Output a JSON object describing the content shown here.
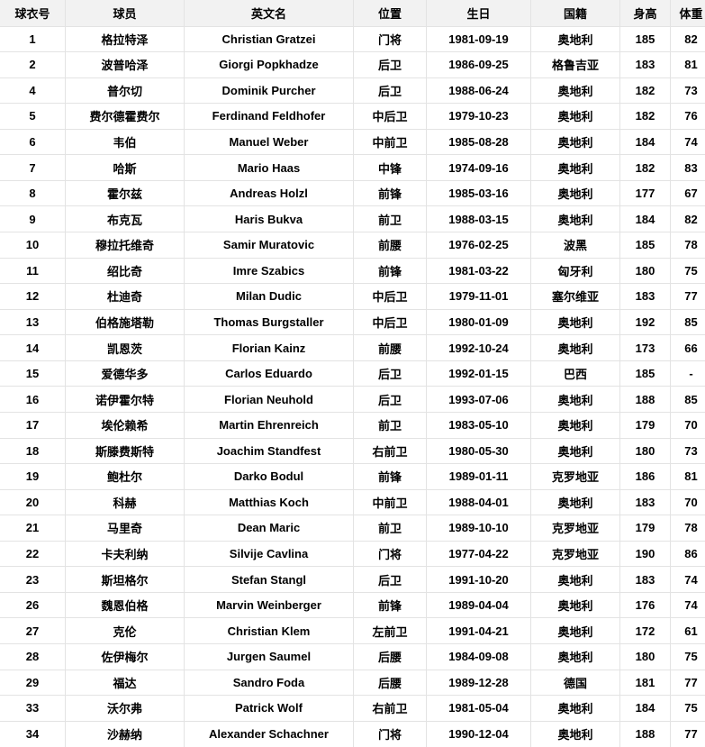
{
  "table": {
    "colors": {
      "header_bg": "#f2f2f2",
      "border": "#e3e3e3",
      "text": "#000000",
      "row_bg": "#ffffff"
    },
    "columns": [
      {
        "key": "jersey-number",
        "label": "球衣号"
      },
      {
        "key": "player-name",
        "label": "球员"
      },
      {
        "key": "english-name",
        "label": "英文名"
      },
      {
        "key": "position",
        "label": "位置"
      },
      {
        "key": "birthday",
        "label": "生日"
      },
      {
        "key": "nationality",
        "label": "国籍"
      },
      {
        "key": "height",
        "label": "身高"
      },
      {
        "key": "weight",
        "label": "体重"
      }
    ],
    "rows": [
      [
        "1",
        "格拉特泽",
        "Christian Gratzei",
        "门将",
        "1981-09-19",
        "奥地利",
        "185",
        "82"
      ],
      [
        "2",
        "波普哈泽",
        "Giorgi Popkhadze",
        "后卫",
        "1986-09-25",
        "格鲁吉亚",
        "183",
        "81"
      ],
      [
        "4",
        "普尔切",
        "Dominik Purcher",
        "后卫",
        "1988-06-24",
        "奥地利",
        "182",
        "73"
      ],
      [
        "5",
        "费尔德霍费尔",
        "Ferdinand Feldhofer",
        "中后卫",
        "1979-10-23",
        "奥地利",
        "182",
        "76"
      ],
      [
        "6",
        "韦伯",
        "Manuel Weber",
        "中前卫",
        "1985-08-28",
        "奥地利",
        "184",
        "74"
      ],
      [
        "7",
        "哈斯",
        "Mario Haas",
        "中锋",
        "1974-09-16",
        "奥地利",
        "182",
        "83"
      ],
      [
        "8",
        "霍尔兹",
        "Andreas Holzl",
        "前锋",
        "1985-03-16",
        "奥地利",
        "177",
        "67"
      ],
      [
        "9",
        "布克瓦",
        "Haris Bukva",
        "前卫",
        "1988-03-15",
        "奥地利",
        "184",
        "82"
      ],
      [
        "10",
        "穆拉托维奇",
        "Samir Muratovic",
        "前腰",
        "1976-02-25",
        "波黑",
        "185",
        "78"
      ],
      [
        "11",
        "绍比奇",
        "Imre Szabics",
        "前锋",
        "1981-03-22",
        "匈牙利",
        "180",
        "75"
      ],
      [
        "12",
        "杜迪奇",
        "Milan Dudic",
        "中后卫",
        "1979-11-01",
        "塞尔维亚",
        "183",
        "77"
      ],
      [
        "13",
        "伯格施塔勒",
        "Thomas Burgstaller",
        "中后卫",
        "1980-01-09",
        "奥地利",
        "192",
        "85"
      ],
      [
        "14",
        "凯恩茨",
        "Florian Kainz",
        "前腰",
        "1992-10-24",
        "奥地利",
        "173",
        "66"
      ],
      [
        "15",
        "爱德华多",
        "Carlos Eduardo",
        "后卫",
        "1992-01-15",
        "巴西",
        "185",
        "-"
      ],
      [
        "16",
        "诺伊霍尔特",
        "Florian Neuhold",
        "后卫",
        "1993-07-06",
        "奥地利",
        "188",
        "85"
      ],
      [
        "17",
        "埃伦赖希",
        "Martin Ehrenreich",
        "前卫",
        "1983-05-10",
        "奥地利",
        "179",
        "70"
      ],
      [
        "18",
        "斯滕费斯特",
        "Joachim Standfest",
        "右前卫",
        "1980-05-30",
        "奥地利",
        "180",
        "73"
      ],
      [
        "19",
        "鲍杜尔",
        "Darko Bodul",
        "前锋",
        "1989-01-11",
        "克罗地亚",
        "186",
        "81"
      ],
      [
        "20",
        "科赫",
        "Matthias Koch",
        "中前卫",
        "1988-04-01",
        "奥地利",
        "183",
        "70"
      ],
      [
        "21",
        "马里奇",
        "Dean Maric",
        "前卫",
        "1989-10-10",
        "克罗地亚",
        "179",
        "78"
      ],
      [
        "22",
        "卡夫利纳",
        "Silvije Cavlina",
        "门将",
        "1977-04-22",
        "克罗地亚",
        "190",
        "86"
      ],
      [
        "23",
        "斯坦格尔",
        "Stefan Stangl",
        "后卫",
        "1991-10-20",
        "奥地利",
        "183",
        "74"
      ],
      [
        "26",
        "魏恩伯格",
        "Marvin Weinberger",
        "前锋",
        "1989-04-04",
        "奥地利",
        "176",
        "74"
      ],
      [
        "27",
        "克伦",
        "Christian Klem",
        "左前卫",
        "1991-04-21",
        "奥地利",
        "172",
        "61"
      ],
      [
        "28",
        "佐伊梅尔",
        "Jurgen Saumel",
        "后腰",
        "1984-09-08",
        "奥地利",
        "180",
        "75"
      ],
      [
        "29",
        "福达",
        "Sandro Foda",
        "后腰",
        "1989-12-28",
        "德国",
        "181",
        "77"
      ],
      [
        "33",
        "沃尔弗",
        "Patrick Wolf",
        "右前卫",
        "1981-05-04",
        "奥地利",
        "184",
        "75"
      ],
      [
        "34",
        "沙赫纳",
        "Alexander Schachner",
        "门将",
        "1990-12-04",
        "奥地利",
        "188",
        "77"
      ]
    ]
  }
}
